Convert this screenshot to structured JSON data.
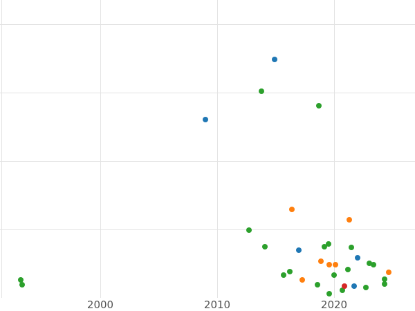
{
  "chart": {
    "background": "#ffffff",
    "gridline_color": "#e3e3e3",
    "tick_label_color": "#555555"
  },
  "chart_data": {
    "type": "scatter",
    "title": "",
    "xlabel": "",
    "ylabel": "",
    "legend": "none",
    "grid": true,
    "x_ticks": [
      {
        "year": 2000,
        "label": "2000"
      },
      {
        "year": 2010,
        "label": "2010"
      },
      {
        "year": 2020,
        "label": "2020"
      }
    ],
    "xlim": [
      1991.4,
      2026.9
    ],
    "ylim": [
      0,
      109
    ],
    "y_axis_note": "y-axis tick labels not visible in cropped view; values are normalized 0-100 between bottom axis and top gridline",
    "series": [
      {
        "name": "blue",
        "color": "#1f77b4",
        "points": [
          [
            2014.9,
            87.1
          ],
          [
            2009.0,
            65.1
          ],
          [
            2017.0,
            17.5
          ],
          [
            2022.0,
            14.7
          ],
          [
            2021.7,
            4.3
          ]
        ]
      },
      {
        "name": "orange",
        "color": "#ff7f0e",
        "points": [
          [
            2016.4,
            32.2
          ],
          [
            2021.3,
            28.6
          ],
          [
            2018.9,
            13.4
          ],
          [
            2019.6,
            12.2
          ],
          [
            2020.1,
            12.2
          ],
          [
            2017.3,
            6.6
          ],
          [
            2024.7,
            9.4
          ]
        ]
      },
      {
        "name": "green",
        "color": "#2ca02c",
        "points": [
          [
            2013.8,
            75.4
          ],
          [
            2018.7,
            70.1
          ],
          [
            2012.7,
            24.8
          ],
          [
            2014.1,
            18.7
          ],
          [
            2015.7,
            8.4
          ],
          [
            2016.2,
            9.6
          ],
          [
            2019.2,
            18.7
          ],
          [
            2019.5,
            19.7
          ],
          [
            2021.5,
            18.5
          ],
          [
            2021.2,
            10.4
          ],
          [
            2023.0,
            12.7
          ],
          [
            2023.4,
            12.2
          ],
          [
            2018.6,
            4.8
          ],
          [
            2020.0,
            8.4
          ],
          [
            2020.7,
            2.8
          ],
          [
            2022.7,
            3.8
          ],
          [
            2024.3,
            6.8
          ],
          [
            2024.3,
            5.1
          ],
          [
            1993.2,
            6.6
          ],
          [
            1993.3,
            4.8
          ],
          [
            2019.6,
            1.5
          ]
        ]
      },
      {
        "name": "red",
        "color": "#d62728",
        "points": [
          [
            2020.9,
            4.3
          ]
        ]
      }
    ]
  }
}
